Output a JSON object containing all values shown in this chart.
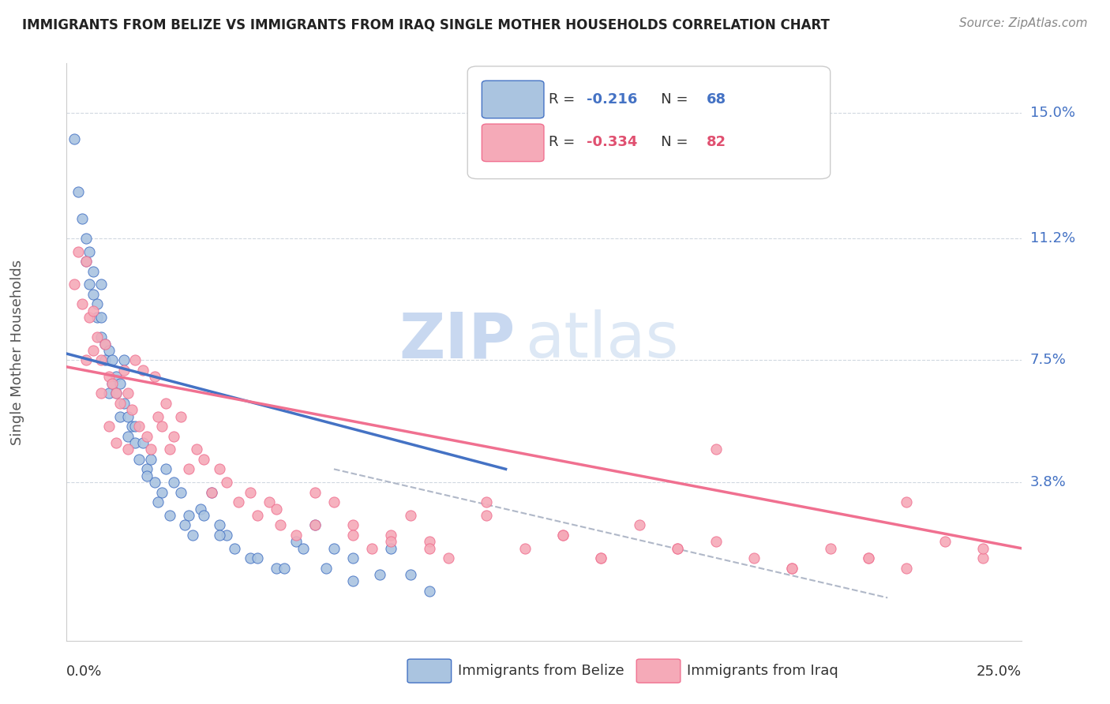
{
  "title": "IMMIGRANTS FROM BELIZE VS IMMIGRANTS FROM IRAQ SINGLE MOTHER HOUSEHOLDS CORRELATION CHART",
  "source": "Source: ZipAtlas.com",
  "ylabel": "Single Mother Households",
  "ytick_labels": [
    "15.0%",
    "11.2%",
    "7.5%",
    "3.8%"
  ],
  "ytick_vals": [
    0.15,
    0.112,
    0.075,
    0.038
  ],
  "xlim": [
    0.0,
    0.25
  ],
  "ylim": [
    -0.01,
    0.165
  ],
  "legend_belize_r": "R = ",
  "legend_belize_r_val": "-0.216",
  "legend_belize_n": "   N = ",
  "legend_belize_n_val": "68",
  "legend_iraq_r": "R = ",
  "legend_iraq_r_val": "-0.334",
  "legend_iraq_n": "   N = ",
  "legend_iraq_n_val": "82",
  "belize_color": "#aac4e0",
  "iraq_color": "#f5aab8",
  "belize_line_color": "#4472c4",
  "iraq_line_color": "#f07090",
  "dashed_line_color": "#b0b8c8",
  "watermark_zip": "ZIP",
  "watermark_atlas": "atlas",
  "belize_scatter_x": [
    0.002,
    0.003,
    0.004,
    0.005,
    0.005,
    0.006,
    0.006,
    0.007,
    0.007,
    0.008,
    0.008,
    0.009,
    0.009,
    0.009,
    0.01,
    0.01,
    0.011,
    0.011,
    0.012,
    0.012,
    0.013,
    0.013,
    0.014,
    0.014,
    0.015,
    0.015,
    0.016,
    0.016,
    0.017,
    0.018,
    0.018,
    0.019,
    0.02,
    0.021,
    0.022,
    0.023,
    0.025,
    0.026,
    0.028,
    0.03,
    0.032,
    0.035,
    0.038,
    0.04,
    0.042,
    0.048,
    0.055,
    0.06,
    0.065,
    0.07,
    0.075,
    0.085,
    0.09,
    0.021,
    0.024,
    0.027,
    0.031,
    0.033,
    0.036,
    0.04,
    0.044,
    0.05,
    0.057,
    0.062,
    0.068,
    0.075,
    0.082,
    0.095
  ],
  "belize_scatter_y": [
    0.142,
    0.126,
    0.118,
    0.105,
    0.112,
    0.098,
    0.108,
    0.102,
    0.095,
    0.092,
    0.088,
    0.098,
    0.088,
    0.082,
    0.08,
    0.075,
    0.078,
    0.065,
    0.075,
    0.068,
    0.07,
    0.065,
    0.068,
    0.058,
    0.075,
    0.062,
    0.058,
    0.052,
    0.055,
    0.055,
    0.05,
    0.045,
    0.05,
    0.042,
    0.045,
    0.038,
    0.035,
    0.042,
    0.038,
    0.035,
    0.028,
    0.03,
    0.035,
    0.025,
    0.022,
    0.015,
    0.012,
    0.02,
    0.025,
    0.018,
    0.015,
    0.018,
    0.01,
    0.04,
    0.032,
    0.028,
    0.025,
    0.022,
    0.028,
    0.022,
    0.018,
    0.015,
    0.012,
    0.018,
    0.012,
    0.008,
    0.01,
    0.005
  ],
  "iraq_scatter_x": [
    0.002,
    0.003,
    0.004,
    0.005,
    0.005,
    0.006,
    0.007,
    0.007,
    0.008,
    0.009,
    0.009,
    0.01,
    0.011,
    0.011,
    0.012,
    0.013,
    0.013,
    0.014,
    0.015,
    0.016,
    0.016,
    0.017,
    0.018,
    0.019,
    0.02,
    0.021,
    0.022,
    0.023,
    0.024,
    0.025,
    0.026,
    0.027,
    0.028,
    0.03,
    0.032,
    0.034,
    0.036,
    0.038,
    0.04,
    0.042,
    0.045,
    0.048,
    0.05,
    0.053,
    0.056,
    0.06,
    0.065,
    0.07,
    0.075,
    0.08,
    0.085,
    0.09,
    0.095,
    0.1,
    0.11,
    0.12,
    0.13,
    0.14,
    0.15,
    0.16,
    0.17,
    0.18,
    0.19,
    0.2,
    0.21,
    0.22,
    0.23,
    0.24,
    0.17,
    0.22,
    0.14,
    0.16,
    0.13,
    0.19,
    0.21,
    0.24,
    0.055,
    0.065,
    0.075,
    0.085,
    0.095,
    0.11
  ],
  "iraq_scatter_y": [
    0.098,
    0.108,
    0.092,
    0.105,
    0.075,
    0.088,
    0.09,
    0.078,
    0.082,
    0.075,
    0.065,
    0.08,
    0.07,
    0.055,
    0.068,
    0.065,
    0.05,
    0.062,
    0.072,
    0.065,
    0.048,
    0.06,
    0.075,
    0.055,
    0.072,
    0.052,
    0.048,
    0.07,
    0.058,
    0.055,
    0.062,
    0.048,
    0.052,
    0.058,
    0.042,
    0.048,
    0.045,
    0.035,
    0.042,
    0.038,
    0.032,
    0.035,
    0.028,
    0.032,
    0.025,
    0.022,
    0.035,
    0.032,
    0.025,
    0.018,
    0.022,
    0.028,
    0.02,
    0.015,
    0.032,
    0.018,
    0.022,
    0.015,
    0.025,
    0.018,
    0.02,
    0.015,
    0.012,
    0.018,
    0.015,
    0.012,
    0.02,
    0.015,
    0.048,
    0.032,
    0.015,
    0.018,
    0.022,
    0.012,
    0.015,
    0.018,
    0.03,
    0.025,
    0.022,
    0.02,
    0.018,
    0.028
  ],
  "belize_line_x": [
    0.0,
    0.115
  ],
  "belize_line_y": [
    0.077,
    0.042
  ],
  "iraq_line_x": [
    0.0,
    0.25
  ],
  "iraq_line_y": [
    0.073,
    0.018
  ],
  "dashed_line_x": [
    0.07,
    0.215
  ],
  "dashed_line_y": [
    0.042,
    0.003
  ]
}
